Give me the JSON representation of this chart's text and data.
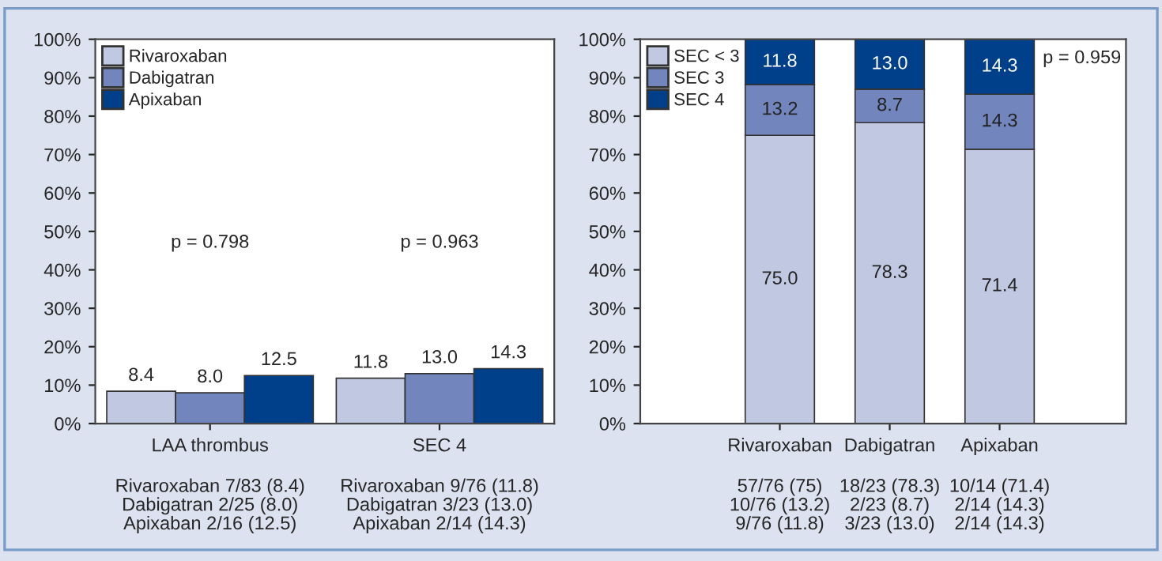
{
  "chart_data": [
    {
      "type": "bar",
      "categories": [
        "LAA thrombus",
        "SEC 4"
      ],
      "series": [
        {
          "name": "Rivaroxaban",
          "color": "#c0c8e2",
          "values": [
            8.4,
            11.8
          ],
          "value_labels": [
            "8.4",
            "11.8"
          ]
        },
        {
          "name": "Dabigatran",
          "color": "#7286bd",
          "values": [
            8,
            13
          ],
          "value_labels": [
            "8.0",
            "13.0"
          ]
        },
        {
          "name": "Apixaban",
          "color": "#003f8a",
          "values": [
            12.5,
            14.3
          ],
          "value_labels": [
            "12.5",
            "14.3"
          ]
        }
      ],
      "ylim": [
        0,
        100
      ],
      "yticks": [
        {
          "value": 0,
          "label": "0%"
        },
        {
          "value": 10,
          "label": "10%"
        },
        {
          "value": 20,
          "label": "20%"
        },
        {
          "value": 30,
          "label": "30%"
        },
        {
          "value": 40,
          "label": "40%"
        },
        {
          "value": 50,
          "label": "50%"
        },
        {
          "value": 60,
          "label": "60%"
        },
        {
          "value": 70,
          "label": "70%"
        },
        {
          "value": 80,
          "label": "80%"
        },
        {
          "value": 90,
          "label": "90%"
        },
        {
          "value": 100,
          "label": "100%"
        }
      ],
      "legend": "top left",
      "grid": false,
      "annotations": [
        "p = 0.798",
        "p = 0.963",
        "Rivaroxaban 7/83 (8.4)\nDabigatran 2/25 (8.0)\nApixaban 2/16 (12.5)",
        "Rivaroxaban 9/76 (11.8)\nDabigatran 3/23 (13.0)\nApixaban 2/14 (14.3)"
      ]
    },
    {
      "type": "bar",
      "stacked": true,
      "categories": [
        "Rivaroxaban",
        "Dabigatran",
        "Apixaban"
      ],
      "series": [
        {
          "name": "SEC < 3",
          "color": "#c0c8e2",
          "values": [
            75,
            78.3,
            71.4
          ],
          "value_labels": [
            "75.0",
            "78.3",
            "71.4"
          ]
        },
        {
          "name": "SEC 3",
          "color": "#7286bd",
          "values": [
            13.2,
            8.7,
            14.3
          ],
          "value_labels": [
            "13.2",
            "8.7",
            "14.3"
          ]
        },
        {
          "name": "SEC 4",
          "color": "#003f8a",
          "values": [
            11.8,
            13,
            14.3
          ],
          "value_labels": [
            "11.8",
            "13.0",
            "14.3"
          ]
        }
      ],
      "ylim": [
        0,
        100
      ],
      "yticks": [
        {
          "value": 0,
          "label": "0%"
        },
        {
          "value": 10,
          "label": "10%"
        },
        {
          "value": 20,
          "label": "20%"
        },
        {
          "value": 30,
          "label": "30%"
        },
        {
          "value": 40,
          "label": "40%"
        },
        {
          "value": 50,
          "label": "50%"
        },
        {
          "value": 60,
          "label": "60%"
        },
        {
          "value": 70,
          "label": "70%"
        },
        {
          "value": 80,
          "label": "80%"
        },
        {
          "value": 90,
          "label": "90%"
        },
        {
          "value": 100,
          "label": "100%"
        }
      ],
      "legend": "top left",
      "grid": false,
      "annotations": [
        "p = 0.959",
        "57/76 (75)\n10/76 (13.2)\n9/76 (11.8)",
        "18/23 (78.3)\n2/23 (8.7)\n3/23 (13.0)",
        "10/14 (71.4)\n2/14 (14.3)\n2/14 (14.3)"
      ]
    }
  ]
}
